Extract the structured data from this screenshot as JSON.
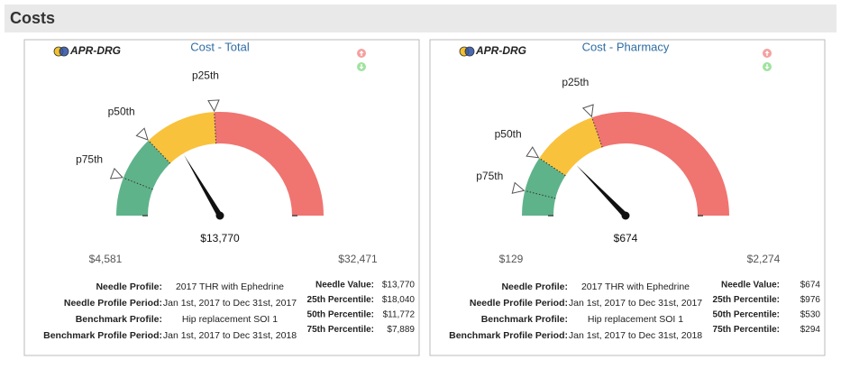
{
  "header": {
    "title": "Costs"
  },
  "chart_data": [
    {
      "type": "gauge",
      "title": "Cost - Total",
      "logo": "APR-DRG",
      "min": {
        "value": 4581,
        "label": "$4,581"
      },
      "max": {
        "value": 32471,
        "label": "$32,471"
      },
      "needle": {
        "value": 13770,
        "label": "$13,770"
      },
      "needle_stat": "Needle Value:",
      "colors": [
        "#5fb38a",
        "#f9c23c",
        "#f07470"
      ],
      "markers": [
        {
          "name": "p25th",
          "stat": "25th Percentile:",
          "value": 18040,
          "label": "$18,040"
        },
        {
          "name": "p50th",
          "stat": "50th Percentile:",
          "value": 11772,
          "label": "$11,772"
        },
        {
          "name": "p75th",
          "stat": "75th Percentile:",
          "value": 7889,
          "label": "$7,889"
        }
      ],
      "details": [
        [
          "Needle Profile:",
          "2017 THR with Ephedrine"
        ],
        [
          "Needle Profile Period:",
          "Jan 1st, 2017 to Dec 31st, 2017"
        ],
        [
          "Benchmark Profile:",
          "Hip replacement SOI 1"
        ],
        [
          "Benchmark Profile Period:",
          "Jan 1st, 2017 to Dec 31st, 2018"
        ]
      ]
    },
    {
      "type": "gauge",
      "title": "Cost - Pharmacy",
      "logo": "APR-DRG",
      "min": {
        "value": 129,
        "label": "$129"
      },
      "max": {
        "value": 2274,
        "label": "$2,274"
      },
      "needle": {
        "value": 674,
        "label": "$674"
      },
      "needle_stat": "Needle Value:",
      "colors": [
        "#5fb38a",
        "#f9c23c",
        "#f07470"
      ],
      "markers": [
        {
          "name": "p25th",
          "stat": "25th Percentile:",
          "value": 976,
          "label": "$976"
        },
        {
          "name": "p50th",
          "stat": "50th Percentile:",
          "value": 530,
          "label": "$530"
        },
        {
          "name": "p75th",
          "stat": "75th Percentile:",
          "value": 294,
          "label": "$294"
        }
      ],
      "details": [
        [
          "Needle Profile:",
          "2017 THR with Ephedrine"
        ],
        [
          "Needle Profile Period:",
          "Jan 1st, 2017 to Dec 31st, 2017"
        ],
        [
          "Benchmark Profile:",
          "Hip replacement SOI 1"
        ],
        [
          "Benchmark Profile Period:",
          "Jan 1st, 2017 to Dec 31st, 2018"
        ]
      ]
    }
  ]
}
